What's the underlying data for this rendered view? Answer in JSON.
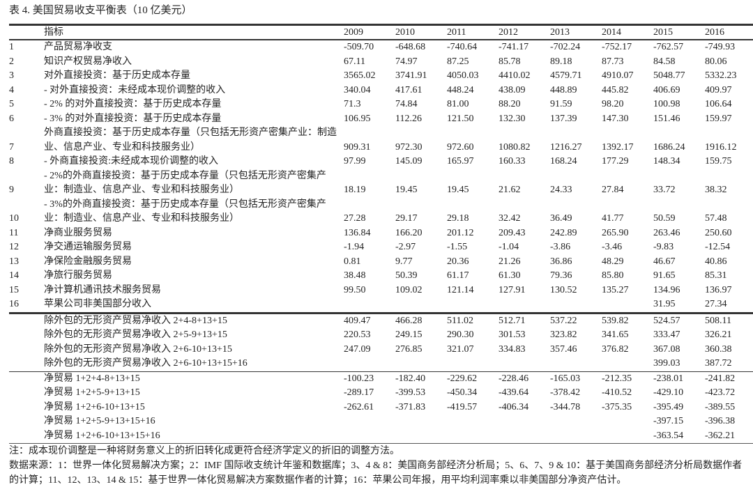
{
  "title": "表 4. 美国贸易收支平衡表（10 亿美元）",
  "columns": {
    "indicator": "指标",
    "years": [
      "2009",
      "2010",
      "2011",
      "2012",
      "2013",
      "2014",
      "2015",
      "2016"
    ]
  },
  "sections": [
    {
      "rows": [
        {
          "idx": "1",
          "label": "产品贸易净收支",
          "values": [
            "-509.70",
            "-648.68",
            "-740.64",
            "-741.17",
            "-702.24",
            "-752.17",
            "-762.57",
            "-749.93"
          ]
        },
        {
          "idx": "2",
          "label": "知识产权贸易净收入",
          "values": [
            "67.11",
            "74.97",
            "87.25",
            "85.78",
            "89.18",
            "87.73",
            "84.58",
            "80.06"
          ]
        },
        {
          "idx": "3",
          "label": "对外直接投资：基于历史成本存量",
          "values": [
            "3565.02",
            "3741.91",
            "4050.03",
            "4410.02",
            "4579.71",
            "4910.07",
            "5048.77",
            "5332.23"
          ]
        },
        {
          "idx": "4",
          "label": "- 对外直接投资：未经成本现价调整的收入",
          "values": [
            "340.04",
            "417.61",
            "448.24",
            "438.09",
            "448.89",
            "445.82",
            "406.69",
            "409.97"
          ]
        },
        {
          "idx": "5",
          "label": "- 2% 的对外直接投资：基于历史成本存量",
          "values": [
            "71.3",
            "74.84",
            "81.00",
            "88.20",
            "91.59",
            "98.20",
            "100.98",
            "106.64"
          ]
        },
        {
          "idx": "6",
          "label": "- 3% 的对外直接投资：基于历史成本存量",
          "values": [
            "106.95",
            "112.26",
            "121.50",
            "132.30",
            "137.39",
            "147.30",
            "151.46",
            "159.97"
          ]
        },
        {
          "idx": "7",
          "label": "外商直接投资：基于历史成本存量（只包括无形资产密集产业：制造业、信息产业、专业和科技服务业）",
          "values": [
            "909.31",
            "972.30",
            "972.60",
            "1080.82",
            "1216.27",
            "1392.17",
            "1686.24",
            "1916.12"
          ]
        },
        {
          "idx": "8",
          "label": "- 外商直接投资:未经成本现价调整的收入",
          "values": [
            "97.99",
            "145.09",
            "165.97",
            "160.33",
            "168.24",
            "177.29",
            "148.34",
            "159.75"
          ]
        },
        {
          "idx": "9",
          "label": "- 2%的外商直接投资：基于历史成本存量（只包括无形资产密集产业：制造业、信息产业、专业和科技服务业）",
          "values": [
            "18.19",
            "19.45",
            "19.45",
            "21.62",
            "24.33",
            "27.84",
            "33.72",
            "38.32"
          ]
        },
        {
          "idx": "10",
          "label": "- 3%的外商直接投资：基于历史成本存量（只包括无形资产密集产业：制造业、信息产业、专业和科技服务业）",
          "values": [
            "27.28",
            "29.17",
            "29.18",
            "32.42",
            "36.49",
            "41.77",
            "50.59",
            "57.48"
          ]
        },
        {
          "idx": "11",
          "label": "净商业服务贸易",
          "values": [
            "136.84",
            "166.20",
            "201.12",
            "209.43",
            "242.89",
            "265.90",
            "263.46",
            "250.60"
          ]
        },
        {
          "idx": "12",
          "label": "净交通运输服务贸易",
          "values": [
            "-1.94",
            "-2.97",
            "-1.55",
            "-1.04",
            "-3.86",
            "-3.46",
            "-9.83",
            "-12.54"
          ]
        },
        {
          "idx": "13",
          "label": "净保险金融服务贸易",
          "values": [
            "0.81",
            "9.77",
            "20.36",
            "21.26",
            "36.86",
            "48.29",
            "46.67",
            "40.86"
          ]
        },
        {
          "idx": "14",
          "label": "净旅行服务贸易",
          "values": [
            "38.48",
            "50.39",
            "61.17",
            "61.30",
            "79.36",
            "85.80",
            "91.65",
            "85.31"
          ]
        },
        {
          "idx": "15",
          "label": "净计算机通讯技术服务贸易",
          "values": [
            "99.50",
            "109.02",
            "121.14",
            "127.91",
            "130.52",
            "135.27",
            "134.96",
            "136.97"
          ]
        },
        {
          "idx": "16",
          "label": "苹果公司非美国部分收入",
          "values": [
            "",
            "",
            "",
            "",
            "",
            "",
            "31.95",
            "27.34"
          ]
        }
      ]
    },
    {
      "rows": [
        {
          "idx": "",
          "label": "除外包的无形资产贸易净收入 2+4-8+13+15",
          "values": [
            "409.47",
            "466.28",
            "511.02",
            "512.71",
            "537.22",
            "539.82",
            "524.57",
            "508.11"
          ]
        },
        {
          "idx": "",
          "label": "除外包的无形资产贸易净收入 2+5-9+13+15",
          "values": [
            "220.53",
            "249.15",
            "290.30",
            "301.53",
            "323.82",
            "341.65",
            "333.47",
            "326.21"
          ]
        },
        {
          "idx": "",
          "label": "除外包的无形资产贸易净收入 2+6-10+13+15",
          "values": [
            "247.09",
            "276.85",
            "321.07",
            "334.83",
            "357.46",
            "376.82",
            "367.08",
            "360.38"
          ]
        },
        {
          "idx": "",
          "label": "除外包的无形资产贸易净收入 2+6-10+13+15+16",
          "values": [
            "",
            "",
            "",
            "",
            "",
            "",
            "399.03",
            "387.72"
          ]
        }
      ]
    },
    {
      "rows": [
        {
          "idx": "",
          "label": "净贸易 1+2+4-8+13+15",
          "values": [
            "-100.23",
            "-182.40",
            "-229.62",
            "-228.46",
            "-165.03",
            "-212.35",
            "-238.01",
            "-241.82"
          ]
        },
        {
          "idx": "",
          "label": "净贸易 1+2+5-9+13+15",
          "values": [
            "-289.17",
            "-399.53",
            "-450.34",
            "-439.64",
            "-378.42",
            "-410.52",
            "-429.10",
            "-423.72"
          ]
        },
        {
          "idx": "",
          "label": "净贸易 1+2+6-10+13+15",
          "values": [
            "-262.61",
            "-371.83",
            "-419.57",
            "-406.34",
            "-344.78",
            "-375.35",
            "-395.49",
            "-389.55"
          ]
        },
        {
          "idx": "",
          "label": "净贸易 1+2+5-9+13+15+16",
          "values": [
            "",
            "",
            "",
            "",
            "",
            "",
            "-397.15",
            "-396.38"
          ]
        },
        {
          "idx": "",
          "label": "净贸易 1+2+6-10+13+15+16",
          "values": [
            "",
            "",
            "",
            "",
            "",
            "",
            "-363.54",
            "-362.21"
          ]
        }
      ]
    }
  ],
  "notes": {
    "note": "注：成本现价调整是一种将财务意义上的折旧转化成更符合经济学定义的折旧的调整方法。",
    "sources": "数据来源：1：世界一体化贸易解决方案；2：IMF 国际收支统计年鉴和数据库；3、4 & 8：美国商务部经济分析局；5、6、7、9 & 10：基于美国商务部经济分析局数据作者的计算；11、12、13、14 & 15：基于世界一体化贸易解决方案数据作者的计算；16：苹果公司年报，用平均利润率乘以非美国部分净资产估计。"
  }
}
